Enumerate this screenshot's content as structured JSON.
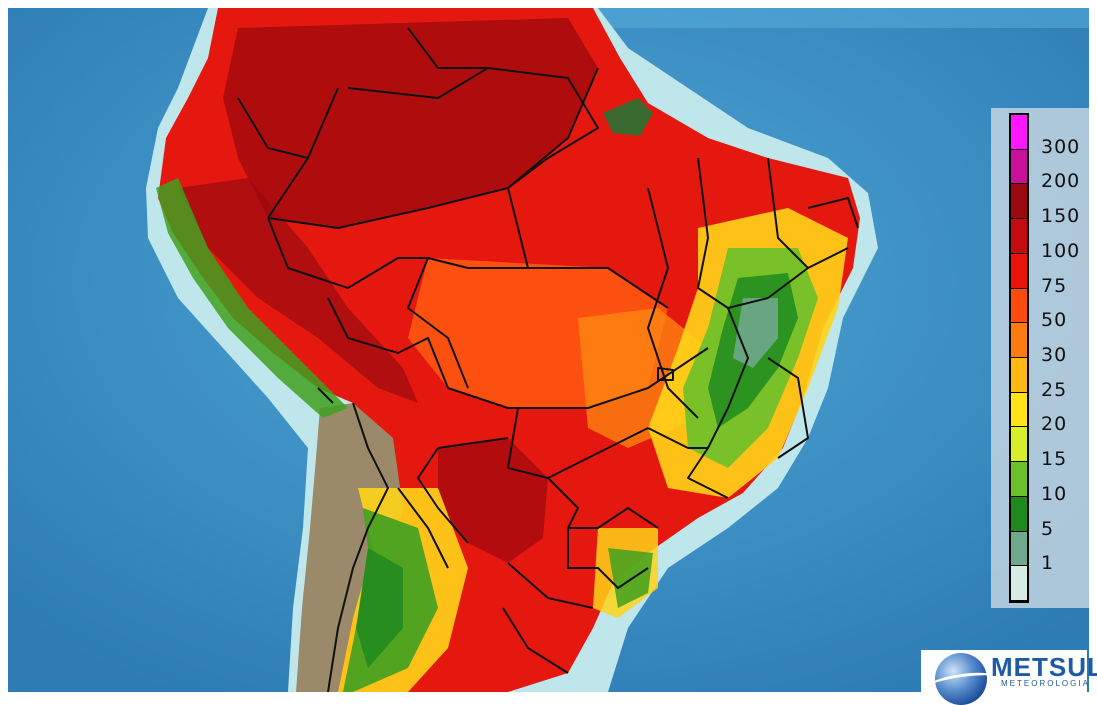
{
  "legend": {
    "labels": [
      "300",
      "200",
      "150",
      "100",
      "75",
      "50",
      "30",
      "25",
      "20",
      "15",
      "10",
      "5",
      "1"
    ],
    "colors": [
      "#ff18ff",
      "#c8109a",
      "#9a0a10",
      "#c40c10",
      "#e8140c",
      "#ff4a10",
      "#ff7a10",
      "#ffb814",
      "#ffe41a",
      "#d7ee2a",
      "#6cc02a",
      "#1e8a1e",
      "#6fa88c",
      "#d7ece4"
    ]
  },
  "logo": {
    "name": "METSUL",
    "tagline": "METEOROLOGIA"
  },
  "colors": {
    "ocean": "#3a8fc4",
    "shelf": "#bfe6ea",
    "andes": "#9a8a6a",
    "border": "#111111"
  }
}
